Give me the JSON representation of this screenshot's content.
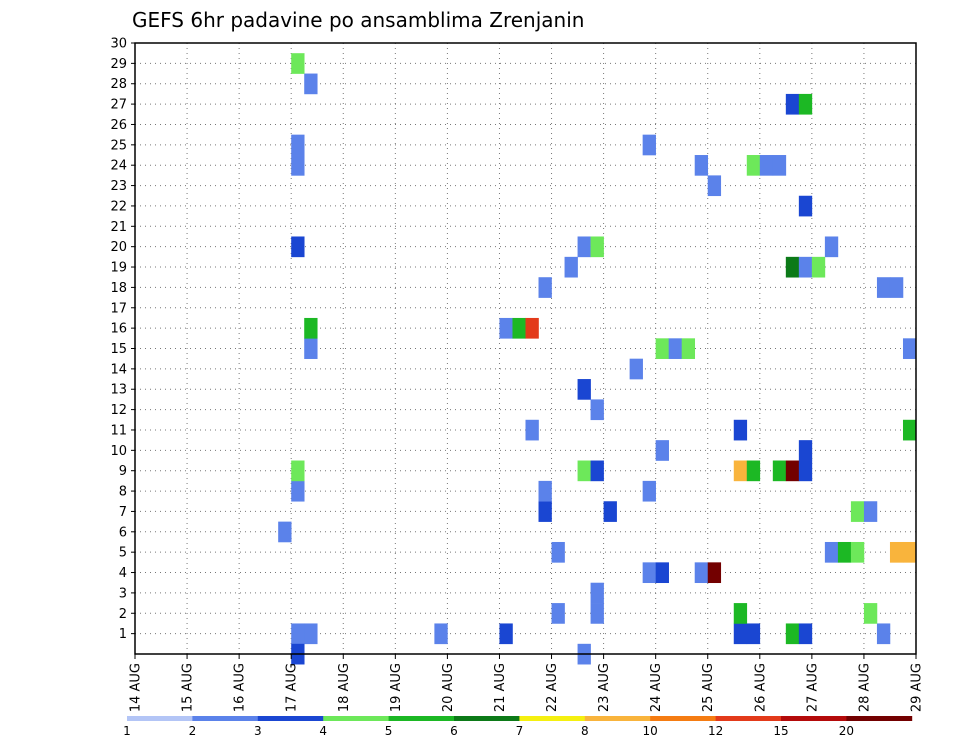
{
  "chart_data": {
    "type": "heatmap",
    "title": "GEFS 6hr padavine po ansamblima Zrenjanin",
    "xlabel": "",
    "ylabel": "",
    "x_ticks": [
      "14 AUG",
      "15 AUG",
      "16 AUG",
      "17 AUG",
      "18 AUG",
      "19 AUG",
      "20 AUG",
      "21 AUG",
      "22 AUG",
      "23 AUG",
      "24 AUG",
      "25 AUG",
      "26 AUG",
      "27 AUG",
      "28 AUG",
      "29 AUG"
    ],
    "y_ticks": [
      "1",
      "2",
      "3",
      "4",
      "5",
      "6",
      "7",
      "8",
      "9",
      "10",
      "11",
      "12",
      "13",
      "14",
      "15",
      "16",
      "17",
      "18",
      "19",
      "20",
      "21",
      "22",
      "23",
      "24",
      "25",
      "26",
      "27",
      "28",
      "29",
      "30"
    ],
    "xlim": [
      0,
      60
    ],
    "ylim": [
      0,
      30
    ],
    "step_hours": 6,
    "grid": true,
    "legend_position": "bottom",
    "color_scale": {
      "labels": [
        "1",
        "2",
        "3",
        "4",
        "5",
        "6",
        "7",
        "8",
        "10",
        "12",
        "15",
        "20"
      ],
      "colors": [
        "#b3c5f6",
        "#5b82ea",
        "#1a46d2",
        "#6de85a",
        "#1cb824",
        "#0c7a18",
        "#f5f010",
        "#f9b43c",
        "#f57c12",
        "#e33a1a",
        "#b40a0a",
        "#730000"
      ]
    },
    "cells": [
      {
        "member": 1,
        "step": 12,
        "level": 1
      },
      {
        "member": 1,
        "step": 13,
        "level": 1
      },
      {
        "member": 1,
        "step": 23,
        "level": 1
      },
      {
        "member": 1,
        "step": 28,
        "level": 2
      },
      {
        "member": 1,
        "step": 46,
        "level": 2
      },
      {
        "member": 1,
        "step": 47,
        "level": 2
      },
      {
        "member": 1,
        "step": 50,
        "level": 4
      },
      {
        "member": 1,
        "step": 51,
        "level": 2
      },
      {
        "member": 1,
        "step": 57,
        "level": 1
      },
      {
        "member": 0,
        "step": 12,
        "level": 2
      },
      {
        "member": 0,
        "step": 34,
        "level": 1
      },
      {
        "member": 2,
        "step": 32,
        "level": 1
      },
      {
        "member": 2,
        "step": 35,
        "level": 1
      },
      {
        "member": 2,
        "step": 46,
        "level": 4
      },
      {
        "member": 2,
        "step": 56,
        "level": 3
      },
      {
        "member": 3,
        "step": 35,
        "level": 1
      },
      {
        "member": 4,
        "step": 39,
        "level": 1
      },
      {
        "member": 4,
        "step": 40,
        "level": 2
      },
      {
        "member": 4,
        "step": 43,
        "level": 1
      },
      {
        "member": 4,
        "step": 44,
        "level": 11
      },
      {
        "member": 5,
        "step": 32,
        "level": 1
      },
      {
        "member": 5,
        "step": 53,
        "level": 1
      },
      {
        "member": 5,
        "step": 54,
        "level": 4
      },
      {
        "member": 5,
        "step": 55,
        "level": 3
      },
      {
        "member": 5,
        "step": 58,
        "level": 7
      },
      {
        "member": 5,
        "step": 59,
        "level": 7
      },
      {
        "member": 6,
        "step": 11,
        "level": 1
      },
      {
        "member": 7,
        "step": 31,
        "level": 2
      },
      {
        "member": 7,
        "step": 36,
        "level": 2
      },
      {
        "member": 7,
        "step": 55,
        "level": 3
      },
      {
        "member": 7,
        "step": 56,
        "level": 1
      },
      {
        "member": 8,
        "step": 12,
        "level": 1
      },
      {
        "member": 8,
        "step": 31,
        "level": 1
      },
      {
        "member": 8,
        "step": 39,
        "level": 1
      },
      {
        "member": 9,
        "step": 12,
        "level": 3
      },
      {
        "member": 9,
        "step": 34,
        "level": 3
      },
      {
        "member": 9,
        "step": 35,
        "level": 2
      },
      {
        "member": 9,
        "step": 46,
        "level": 7
      },
      {
        "member": 9,
        "step": 47,
        "level": 4
      },
      {
        "member": 9,
        "step": 49,
        "level": 4
      },
      {
        "member": 9,
        "step": 50,
        "level": 11
      },
      {
        "member": 9,
        "step": 51,
        "level": 2
      },
      {
        "member": 10,
        "step": 40,
        "level": 1
      },
      {
        "member": 10,
        "step": 51,
        "level": 2
      },
      {
        "member": 11,
        "step": 30,
        "level": 1
      },
      {
        "member": 11,
        "step": 46,
        "level": 2
      },
      {
        "member": 11,
        "step": 59,
        "level": 4
      },
      {
        "member": 12,
        "step": 35,
        "level": 1
      },
      {
        "member": 13,
        "step": 34,
        "level": 2
      },
      {
        "member": 14,
        "step": 38,
        "level": 1
      },
      {
        "member": 15,
        "step": 13,
        "level": 1
      },
      {
        "member": 15,
        "step": 40,
        "level": 3
      },
      {
        "member": 15,
        "step": 41,
        "level": 1
      },
      {
        "member": 15,
        "step": 42,
        "level": 3
      },
      {
        "member": 15,
        "step": 59,
        "level": 1
      },
      {
        "member": 16,
        "step": 13,
        "level": 4
      },
      {
        "member": 16,
        "step": 28,
        "level": 1
      },
      {
        "member": 16,
        "step": 29,
        "level": 4
      },
      {
        "member": 16,
        "step": 30,
        "level": 9
      },
      {
        "member": 18,
        "step": 31,
        "level": 1
      },
      {
        "member": 18,
        "step": 57,
        "level": 1
      },
      {
        "member": 18,
        "step": 58,
        "level": 1
      },
      {
        "member": 19,
        "step": 33,
        "level": 1
      },
      {
        "member": 19,
        "step": 50,
        "level": 5
      },
      {
        "member": 19,
        "step": 51,
        "level": 1
      },
      {
        "member": 19,
        "step": 52,
        "level": 3
      },
      {
        "member": 20,
        "step": 12,
        "level": 2
      },
      {
        "member": 20,
        "step": 34,
        "level": 1
      },
      {
        "member": 20,
        "step": 35,
        "level": 3
      },
      {
        "member": 20,
        "step": 53,
        "level": 1
      },
      {
        "member": 22,
        "step": 51,
        "level": 2
      },
      {
        "member": 23,
        "step": 44,
        "level": 1
      },
      {
        "member": 24,
        "step": 12,
        "level": 1
      },
      {
        "member": 24,
        "step": 43,
        "level": 1
      },
      {
        "member": 24,
        "step": 47,
        "level": 3
      },
      {
        "member": 24,
        "step": 48,
        "level": 1
      },
      {
        "member": 24,
        "step": 49,
        "level": 1
      },
      {
        "member": 25,
        "step": 12,
        "level": 1
      },
      {
        "member": 25,
        "step": 39,
        "level": 1
      },
      {
        "member": 27,
        "step": 50,
        "level": 2
      },
      {
        "member": 27,
        "step": 51,
        "level": 4
      },
      {
        "member": 28,
        "step": 13,
        "level": 1
      },
      {
        "member": 29,
        "step": 12,
        "level": 3
      }
    ]
  }
}
